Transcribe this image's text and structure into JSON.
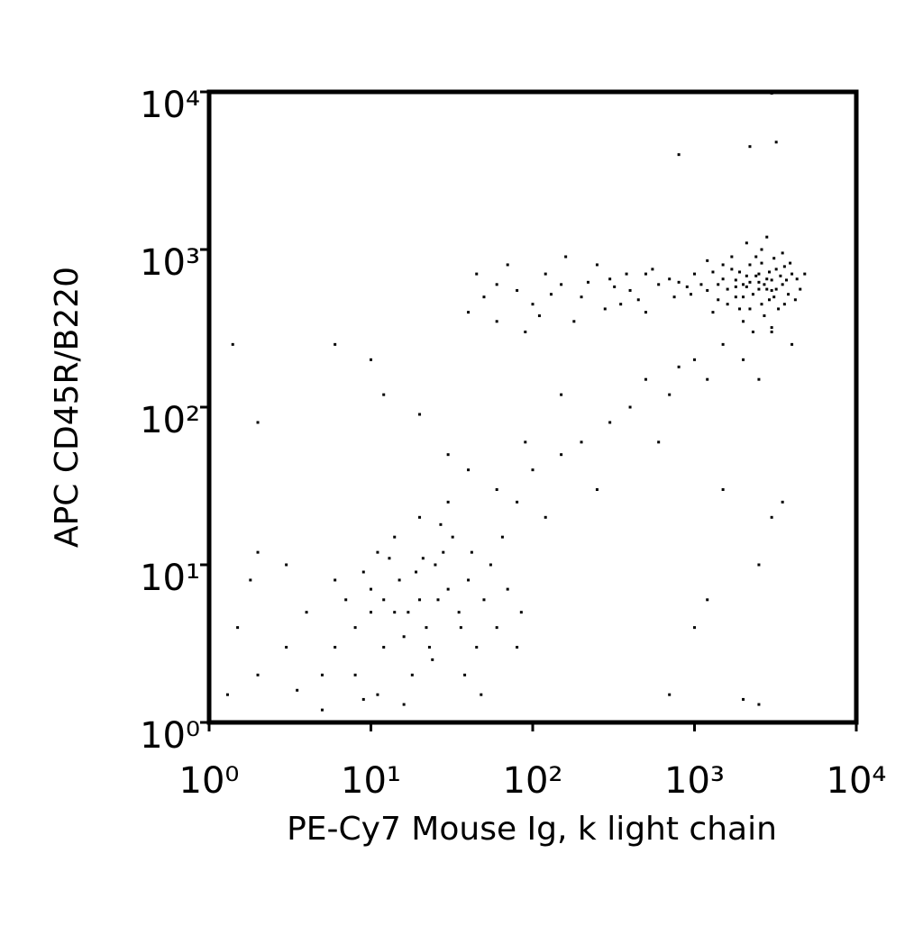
{
  "chart_data": {
    "type": "scatter",
    "xlabel": "PE-Cy7 Mouse Ig, k light chain",
    "ylabel": "APC CD45R/B220",
    "log_x": true,
    "log_y": true,
    "color": "#000000",
    "xlim": [
      1,
      10000
    ],
    "ylim": [
      1,
      10000
    ],
    "xticks": [
      {
        "value": 1,
        "label": "10⁰"
      },
      {
        "value": 10,
        "label": "10¹"
      },
      {
        "value": 100,
        "label": "10²"
      },
      {
        "value": 1000,
        "label": "10³"
      },
      {
        "value": 10000,
        "label": "10⁴"
      }
    ],
    "yticks": [
      {
        "value": 1,
        "label": "10⁰"
      },
      {
        "value": 10,
        "label": "10¹"
      },
      {
        "value": 100,
        "label": "10²"
      },
      {
        "value": 1000,
        "label": "10³"
      },
      {
        "value": 10000,
        "label": "10⁴"
      }
    ],
    "x": [
      2000,
      2500,
      3000,
      1800,
      2200,
      2800,
      3500,
      1500,
      1200,
      2600,
      3200,
      4000,
      1700,
      2300,
      2900,
      2100,
      3800,
      1400,
      1100,
      900,
      2400,
      3100,
      1900,
      2700,
      3600,
      4300,
      1300,
      1600,
      2000,
      3000,
      2500,
      2200,
      1800,
      3400,
      2800,
      1000,
      800,
      4500,
      3900,
      2600,
      1700,
      1300,
      2300,
      3300,
      2000,
      2700,
      3700,
      1500,
      2100,
      2900,
      1200,
      3500,
      4200,
      1600,
      2400,
      3200,
      1900,
      2600,
      1400,
      3000,
      700,
      950,
      2200,
      3600,
      1800,
      2500,
      4800,
      2100,
      2800,
      3100,
      600,
      500,
      400,
      300,
      200,
      150,
      120,
      100,
      80,
      60,
      50,
      45,
      40,
      250,
      350,
      180,
      70,
      90,
      450,
      550,
      130,
      220,
      320,
      160,
      110,
      380,
      280,
      60,
      500,
      750,
      10,
      15,
      20,
      8,
      12,
      25,
      30,
      6,
      5,
      18,
      22,
      35,
      40,
      28,
      14,
      9,
      7,
      4,
      3,
      2,
      1.5,
      1.3,
      11,
      16,
      24,
      45,
      50,
      60,
      32,
      20,
      13,
      10,
      26,
      17,
      8,
      6,
      3,
      2,
      1.8,
      12,
      19,
      23,
      38,
      48,
      55,
      70,
      80,
      42,
      27,
      16,
      9,
      5,
      3.5,
      36,
      21,
      14,
      11,
      30,
      65,
      85,
      60,
      80,
      100,
      150,
      200,
      300,
      400,
      500,
      700,
      1000,
      1200,
      1500,
      2000,
      3000,
      120,
      250,
      90,
      40,
      30,
      20,
      10,
      12,
      6,
      1.4,
      2,
      150,
      600,
      800,
      2500,
      4000,
      2000,
      3000,
      2200,
      3200,
      800,
      1500,
      3000,
      2500,
      1000,
      2000,
      700,
      3500,
      1200,
      2500
    ],
    "y": [
      600,
      700,
      550,
      500,
      800,
      650,
      600,
      650,
      550,
      450,
      750,
      700,
      750,
      520,
      480,
      680,
      520,
      480,
      600,
      580,
      900,
      880,
      420,
      380,
      450,
      650,
      720,
      560,
      350,
      320,
      560,
      620,
      640,
      680,
      560,
      700,
      620,
      560,
      820,
      1000,
      900,
      400,
      300,
      420,
      500,
      600,
      640,
      800,
      580,
      720,
      850,
      950,
      480,
      450,
      680,
      560,
      720,
      820,
      600,
      640,
      650,
      520,
      420,
      780,
      580,
      620,
      700,
      1100,
      1200,
      500,
      600,
      700,
      550,
      650,
      500,
      600,
      700,
      450,
      550,
      600,
      500,
      700,
      400,
      800,
      450,
      350,
      800,
      300,
      480,
      750,
      520,
      620,
      580,
      900,
      380,
      700,
      420,
      350,
      400,
      500,
      5,
      8,
      6,
      4,
      3,
      10,
      7,
      3,
      2,
      2,
      4,
      5,
      8,
      12,
      15,
      9,
      6,
      5,
      3,
      2,
      4,
      1.5,
      1.5,
      1.3,
      2.5,
      3,
      6,
      4,
      15,
      20,
      11,
      7,
      6,
      5,
      2,
      8,
      10,
      12,
      8,
      6,
      9,
      3,
      2,
      1.5,
      10,
      7,
      3,
      12,
      18,
      3.5,
      1.4,
      1.2,
      1.6,
      4,
      11,
      5,
      12,
      25,
      15,
      5,
      30,
      25,
      40,
      50,
      60,
      80,
      100,
      150,
      120,
      200,
      150,
      250,
      200,
      300,
      20,
      30,
      60,
      40,
      50,
      90,
      200,
      120,
      250,
      250,
      80,
      120,
      60,
      180,
      150,
      250,
      10000,
      9800,
      4500,
      4800,
      4000,
      30,
      20,
      10,
      4,
      1.4,
      1.5,
      25,
      6,
      1.3
    ]
  }
}
